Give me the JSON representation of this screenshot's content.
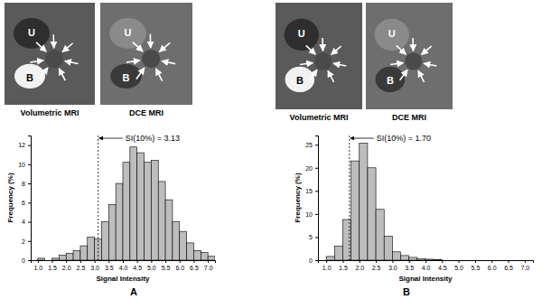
{
  "chart_data": [
    {
      "type": "histogram",
      "x_label": "Signal Intensity",
      "y_label": "Frequency (%)",
      "bins": [
        1.0,
        1.25,
        1.5,
        1.75,
        2.0,
        2.25,
        2.5,
        2.75,
        3.0,
        3.25,
        3.5,
        3.75,
        4.0,
        4.25,
        4.5,
        4.75,
        5.0,
        5.25,
        5.5,
        5.75,
        6.0,
        6.25,
        6.5,
        6.75,
        7.0,
        7.25
      ],
      "counts": [
        0.2,
        0,
        0.2,
        0.5,
        0.7,
        1.0,
        1.5,
        2.4,
        2.2,
        4.0,
        5.8,
        8.0,
        10.2,
        11.8,
        11.2,
        10.2,
        10.4,
        8.2,
        6.3,
        4.0,
        3.0,
        1.8,
        1.0,
        0.8,
        0.4
      ],
      "color": "#bdbdbd",
      "xlim": [
        0.75,
        7.25
      ],
      "xticks": [
        {
          "value": 1.0,
          "label": "1.0"
        },
        1.5,
        {
          "value": 2.0,
          "label": "2.0"
        },
        2.5,
        {
          "value": 3.0,
          "label": "3.0"
        },
        3.5,
        {
          "value": 4.0,
          "label": "4.0"
        },
        4.5,
        {
          "value": 5.0,
          "label": "5.0"
        },
        5.5,
        {
          "value": 6.0,
          "label": "6.0"
        },
        6.5,
        {
          "value": 7.0,
          "label": "7.0"
        }
      ],
      "ylim": [
        0,
        13
      ],
      "yticks": [
        0,
        2,
        4,
        6,
        8,
        10,
        12
      ],
      "annotations": [
        {
          "x": 3.13,
          "text": "SI(10%) = 3.13"
        }
      ]
    },
    {
      "type": "histogram",
      "x_label": "Signal Intensity",
      "y_label": "Frequency (%)",
      "bins": [
        1.0,
        1.25,
        1.5,
        1.75,
        2.0,
        2.25,
        2.5,
        2.75,
        3.0,
        3.25,
        3.5,
        3.75,
        4.0,
        4.25,
        4.5
      ],
      "counts": [
        0.8,
        3.0,
        8.8,
        21.5,
        25.3,
        20.0,
        11.0,
        5.2,
        1.8,
        1.0,
        0.6,
        0.3,
        0.2,
        0.1
      ],
      "color": "#bdbdbd",
      "xlim": [
        0.75,
        7.25
      ],
      "xticks": [
        {
          "value": 1.0,
          "label": "1.0"
        },
        1.5,
        {
          "value": 2.0,
          "label": "2.0"
        },
        2.5,
        {
          "value": 3.0,
          "label": "3.0"
        },
        3.5,
        {
          "value": 4.0,
          "label": "4.0"
        },
        4.5,
        {
          "value": 5.0,
          "label": "5.0"
        },
        5.5,
        {
          "value": 6.0,
          "label": "6.0"
        },
        6.5,
        {
          "value": 7.0,
          "label": "7.0"
        }
      ],
      "ylim": [
        0,
        27
      ],
      "yticks": [
        0,
        5,
        10,
        15,
        20,
        25
      ],
      "annotations": [
        {
          "x": 1.7,
          "text": "SI(10%) = 1.70"
        }
      ]
    }
  ],
  "panels": [
    {
      "label": "A",
      "images": [
        {
          "caption": "Volumetric MRI",
          "labels": [
            "U",
            "B"
          ]
        },
        {
          "caption": "DCE MRI",
          "labels": [
            "U",
            "B"
          ]
        }
      ]
    },
    {
      "label": "B",
      "images": [
        {
          "caption": "Volumetric MRI",
          "labels": [
            "U",
            "B"
          ]
        },
        {
          "caption": "DCE MRI",
          "labels": [
            "U",
            "B"
          ]
        }
      ]
    }
  ]
}
